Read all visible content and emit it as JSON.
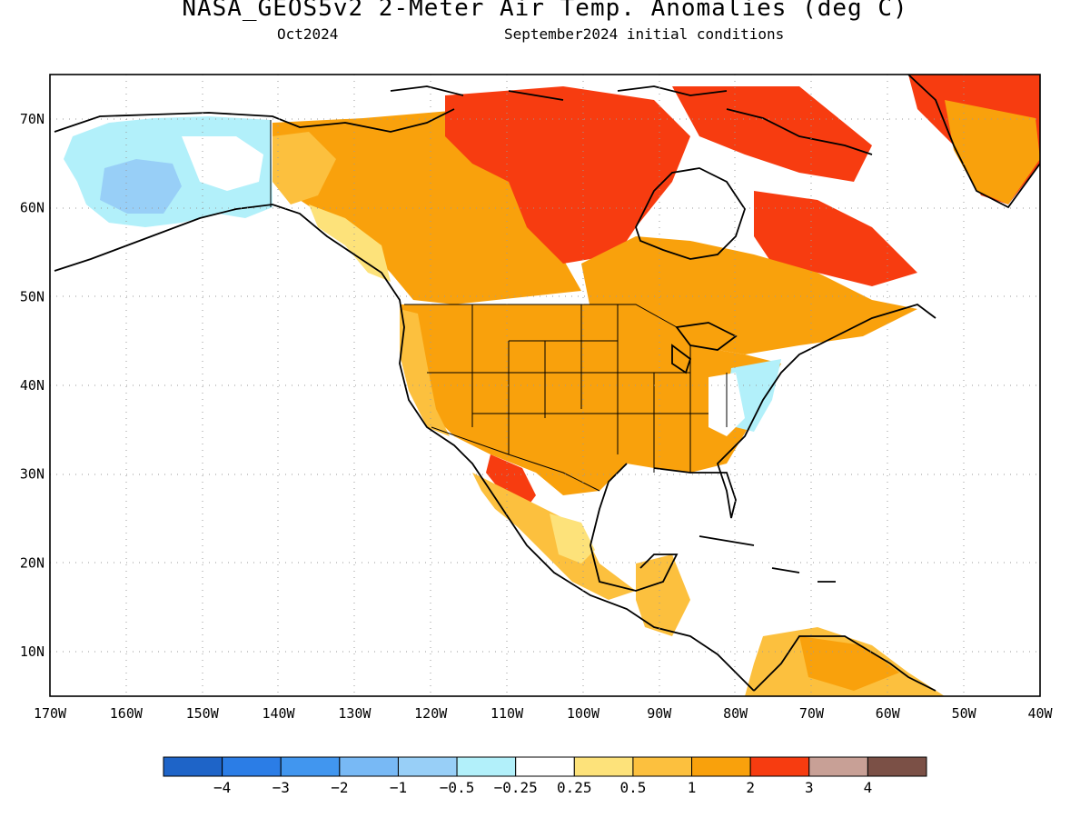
{
  "title": "NASA_GEOS5v2 2-Meter Air Temp. Anomalies (deg C)",
  "subtitle_left": "Oct2024",
  "subtitle_right": "September2024 initial conditions",
  "map": {
    "lon_range": [
      -170,
      -40
    ],
    "lat_range": [
      5,
      75
    ],
    "lon_ticks": [
      "170W",
      "160W",
      "150W",
      "140W",
      "130W",
      "120W",
      "110W",
      "100W",
      "90W",
      "80W",
      "70W",
      "60W",
      "50W",
      "40W"
    ],
    "lat_ticks": [
      "10N",
      "20N",
      "30N",
      "40N",
      "50N",
      "60N",
      "70N"
    ]
  },
  "colorbar": {
    "labels": [
      "-4",
      "-3",
      "-2",
      "-1",
      "-0.5",
      "-0.25",
      "0.25",
      "0.5",
      "1",
      "2",
      "3",
      "4"
    ],
    "colors": [
      "#1e64c8",
      "#2b7de6",
      "#4196ef",
      "#78b9f5",
      "#98cff7",
      "#b2f0fa",
      "#ffffff",
      "#fde27a",
      "#fcc03e",
      "#f9a10c",
      "#f73c10",
      "#c8a096",
      "#7b5046"
    ]
  }
}
